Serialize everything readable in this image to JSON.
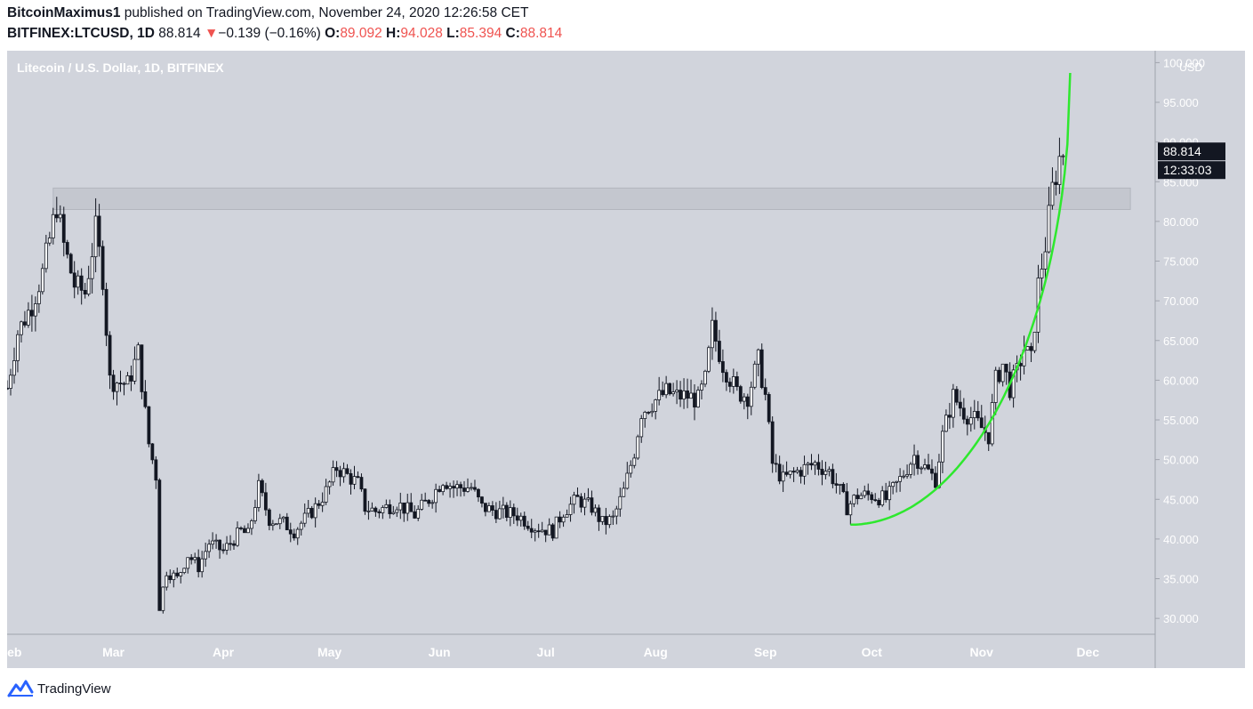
{
  "header": {
    "author": "BitcoinMaximus1",
    "published": "published on TradingView.com, November 24, 2020 12:26:58 CET",
    "symbol": "BITFINEX:LTCUSD, 1D",
    "last": "88.814",
    "change_arrow": "▼",
    "change": "−0.139 (−0.16%)",
    "o_label": "O:",
    "o": "89.092",
    "h_label": "H:",
    "h": "94.028",
    "l_label": "L:",
    "l": "85.394",
    "c_label": "C:",
    "c": "88.814"
  },
  "colors": {
    "chart_bg": "#d1d4dc",
    "candle": "#131722",
    "curve": "#2ee82e",
    "zone": "#c4c7cf",
    "price_label_bg": "#131722",
    "down": "#ef5350"
  },
  "footer": {
    "brand": "TradingView",
    "icon": "tradingview-logo-icon"
  },
  "chart_data": {
    "type": "candlestick",
    "title": "Litecoin / U.S. Dollar, 1D, BITFINEX",
    "currency_label": "USD",
    "y_ticks": [
      "30.000",
      "35.000",
      "40.000",
      "45.000",
      "50.000",
      "55.000",
      "60.000",
      "65.000",
      "70.000",
      "75.000",
      "80.000",
      "85.000",
      "90.000",
      "95.000",
      "100.000"
    ],
    "y_range": [
      28.0,
      101.5
    ],
    "x_ticks": [
      {
        "label": "Feb",
        "date": "2020-02-01"
      },
      {
        "label": "Mar",
        "date": "2020-03-01"
      },
      {
        "label": "Apr",
        "date": "2020-04-01"
      },
      {
        "label": "May",
        "date": "2020-05-01"
      },
      {
        "label": "Jun",
        "date": "2020-06-01"
      },
      {
        "label": "Jul",
        "date": "2020-07-01"
      },
      {
        "label": "Aug",
        "date": "2020-08-01"
      },
      {
        "label": "Sep",
        "date": "2020-09-01"
      },
      {
        "label": "Oct",
        "date": "2020-10-01"
      },
      {
        "label": "Nov",
        "date": "2020-11-01"
      },
      {
        "label": "Dec",
        "date": "2020-12-01"
      }
    ],
    "x_range": [
      "2020-01-31",
      "2020-12-20"
    ],
    "current_price": "88.814",
    "countdown": "12:33:03",
    "resistance_zone": {
      "from_date": "2020-02-13",
      "to_date": "2020-12-13",
      "low": 81.5,
      "high": 84.2
    },
    "curve": {
      "from_date": "2020-09-25",
      "to_date": "2020-11-26",
      "start_price": 41.8,
      "end_price": 98.7
    },
    "anchors": [
      {
        "date": "2020-01-31",
        "price": 59.0
      },
      {
        "date": "2020-02-03",
        "price": 66.0
      },
      {
        "date": "2020-02-07",
        "price": 69.5
      },
      {
        "date": "2020-02-10",
        "price": 73.5
      },
      {
        "date": "2020-02-14",
        "price": 82.0
      },
      {
        "date": "2020-02-16",
        "price": 77.0
      },
      {
        "date": "2020-02-19",
        "price": 72.0
      },
      {
        "date": "2020-02-22",
        "price": 71.0
      },
      {
        "date": "2020-02-25",
        "price": 79.0
      },
      {
        "date": "2020-02-27",
        "price": 73.0
      },
      {
        "date": "2020-02-29",
        "price": 60.0
      },
      {
        "date": "2020-03-05",
        "price": 59.5
      },
      {
        "date": "2020-03-08",
        "price": 63.5
      },
      {
        "date": "2020-03-11",
        "price": 52.0
      },
      {
        "date": "2020-03-13",
        "price": 48.0
      },
      {
        "date": "2020-03-14",
        "price": 31.5
      },
      {
        "date": "2020-03-16",
        "price": 36.0
      },
      {
        "date": "2020-03-19",
        "price": 35.0
      },
      {
        "date": "2020-03-22",
        "price": 38.0
      },
      {
        "date": "2020-03-25",
        "price": 36.5
      },
      {
        "date": "2020-03-28",
        "price": 39.5
      },
      {
        "date": "2020-04-01",
        "price": 38.5
      },
      {
        "date": "2020-04-06",
        "price": 41.0
      },
      {
        "date": "2020-04-08",
        "price": 40.5
      },
      {
        "date": "2020-04-11",
        "price": 46.5
      },
      {
        "date": "2020-04-14",
        "price": 42.5
      },
      {
        "date": "2020-04-18",
        "price": 42.0
      },
      {
        "date": "2020-04-21",
        "price": 41.0
      },
      {
        "date": "2020-04-24",
        "price": 42.5
      },
      {
        "date": "2020-04-27",
        "price": 44.0
      },
      {
        "date": "2020-04-30",
        "price": 46.0
      },
      {
        "date": "2020-05-03",
        "price": 49.0
      },
      {
        "date": "2020-05-06",
        "price": 48.0
      },
      {
        "date": "2020-05-09",
        "price": 47.0
      },
      {
        "date": "2020-05-11",
        "price": 44.0
      },
      {
        "date": "2020-05-14",
        "price": 43.5
      },
      {
        "date": "2020-05-20",
        "price": 44.5
      },
      {
        "date": "2020-05-25",
        "price": 43.0
      },
      {
        "date": "2020-05-30",
        "price": 45.5
      },
      {
        "date": "2020-06-02",
        "price": 47.5
      },
      {
        "date": "2020-06-05",
        "price": 46.5
      },
      {
        "date": "2020-06-10",
        "price": 46.5
      },
      {
        "date": "2020-06-13",
        "price": 44.0
      },
      {
        "date": "2020-06-17",
        "price": 43.5
      },
      {
        "date": "2020-06-23",
        "price": 43.0
      },
      {
        "date": "2020-06-28",
        "price": 41.5
      },
      {
        "date": "2020-07-03",
        "price": 41.0
      },
      {
        "date": "2020-07-06",
        "price": 43.5
      },
      {
        "date": "2020-07-10",
        "price": 45.0
      },
      {
        "date": "2020-07-14",
        "price": 44.0
      },
      {
        "date": "2020-07-17",
        "price": 42.0
      },
      {
        "date": "2020-07-20",
        "price": 42.5
      },
      {
        "date": "2020-07-23",
        "price": 46.0
      },
      {
        "date": "2020-07-26",
        "price": 51.0
      },
      {
        "date": "2020-07-28",
        "price": 56.0
      },
      {
        "date": "2020-08-01",
        "price": 57.5
      },
      {
        "date": "2020-08-04",
        "price": 58.5
      },
      {
        "date": "2020-08-07",
        "price": 58.0
      },
      {
        "date": "2020-08-10",
        "price": 58.0
      },
      {
        "date": "2020-08-13",
        "price": 57.5
      },
      {
        "date": "2020-08-15",
        "price": 60.0
      },
      {
        "date": "2020-08-17",
        "price": 66.5
      },
      {
        "date": "2020-08-20",
        "price": 62.0
      },
      {
        "date": "2020-08-24",
        "price": 58.5
      },
      {
        "date": "2020-08-27",
        "price": 58.0
      },
      {
        "date": "2020-08-30",
        "price": 62.5
      },
      {
        "date": "2020-09-01",
        "price": 58.0
      },
      {
        "date": "2020-09-03",
        "price": 49.5
      },
      {
        "date": "2020-09-06",
        "price": 47.5
      },
      {
        "date": "2020-09-10",
        "price": 48.5
      },
      {
        "date": "2020-09-15",
        "price": 49.5
      },
      {
        "date": "2020-09-19",
        "price": 48.5
      },
      {
        "date": "2020-09-22",
        "price": 46.0
      },
      {
        "date": "2020-09-24",
        "price": 44.0
      },
      {
        "date": "2020-09-27",
        "price": 45.5
      },
      {
        "date": "2020-10-01",
        "price": 45.5
      },
      {
        "date": "2020-10-05",
        "price": 45.0
      },
      {
        "date": "2020-10-09",
        "price": 47.5
      },
      {
        "date": "2020-10-13",
        "price": 50.5
      },
      {
        "date": "2020-10-16",
        "price": 49.0
      },
      {
        "date": "2020-10-19",
        "price": 47.5
      },
      {
        "date": "2020-10-21",
        "price": 53.0
      },
      {
        "date": "2020-10-24",
        "price": 58.0
      },
      {
        "date": "2020-10-27",
        "price": 56.0
      },
      {
        "date": "2020-10-30",
        "price": 55.0
      },
      {
        "date": "2020-11-01",
        "price": 54.0
      },
      {
        "date": "2020-11-03",
        "price": 53.0
      },
      {
        "date": "2020-11-05",
        "price": 60.0
      },
      {
        "date": "2020-11-07",
        "price": 62.0
      },
      {
        "date": "2020-11-09",
        "price": 59.0
      },
      {
        "date": "2020-11-11",
        "price": 61.0
      },
      {
        "date": "2020-11-13",
        "price": 64.0
      },
      {
        "date": "2020-11-15",
        "price": 62.5
      },
      {
        "date": "2020-11-17",
        "price": 72.0
      },
      {
        "date": "2020-11-19",
        "price": 77.0
      },
      {
        "date": "2020-11-21",
        "price": 84.0
      },
      {
        "date": "2020-11-23",
        "price": 88.0
      },
      {
        "date": "2020-11-24",
        "price": 88.8
      }
    ]
  }
}
